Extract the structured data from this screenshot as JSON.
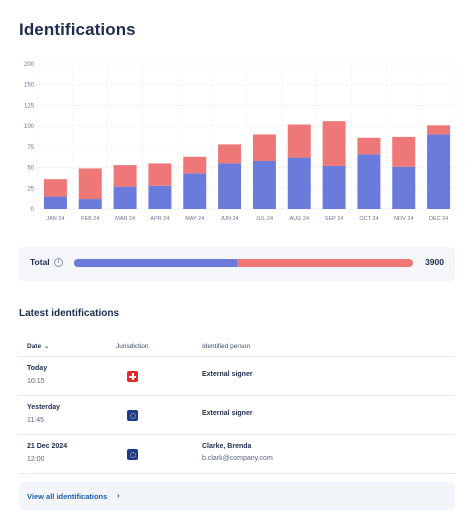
{
  "page": {
    "title": "Identifications"
  },
  "chart_data": {
    "type": "bar",
    "stacked": true,
    "categories": [
      "JAN 24",
      "FEB 24",
      "MAR 24",
      "APR 24",
      "MAY 24",
      "JUN 24",
      "JUL 24",
      "AUG 24",
      "SEP 24",
      "OCT 24",
      "NOV 24",
      "DEC 24"
    ],
    "series": [
      {
        "values": [
          15,
          12,
          27,
          28,
          43,
          55,
          58,
          62,
          52,
          66,
          51,
          90
        ],
        "color": "#6b7bdc"
      },
      {
        "values": [
          21,
          37,
          26,
          27,
          20,
          23,
          32,
          40,
          54,
          20,
          36,
          11
        ],
        "color": "#ee7777"
      }
    ],
    "yticks": [
      0,
      25,
      50,
      75,
      100,
      125,
      150,
      200
    ],
    "ylim": [
      0,
      200
    ],
    "grid": true,
    "legend": "none"
  },
  "total": {
    "label": "Total",
    "value": "3900",
    "fill_fraction": 0.48,
    "info_icon": "info-icon"
  },
  "latest": {
    "title": "Latest identifications",
    "columns": {
      "date": "Date",
      "jurisdiction": "Jurisdiction",
      "person": "Identified person"
    },
    "rows": [
      {
        "date": "Today",
        "time": "10:15",
        "flag": "switzerland-flag-icon",
        "name": "External signer",
        "email": ""
      },
      {
        "date": "Yesterday",
        "time": "11:45",
        "flag": "eu-flag-icon",
        "name": "External signer",
        "email": ""
      },
      {
        "date": "21 Dec 2024",
        "time": "12:00",
        "flag": "eu-flag-icon",
        "name": "Clarke, Brenda",
        "email": "b.clark@company.com"
      }
    ],
    "view_all": "View all identifications"
  }
}
